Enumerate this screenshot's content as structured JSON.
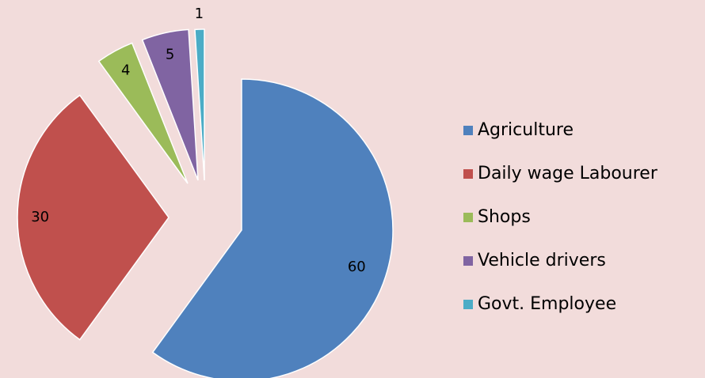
{
  "chart_data": {
    "type": "pie",
    "categories": [
      "Agriculture",
      "Daily wage Labourer",
      "Shops",
      "Vehicle drivers",
      "Govt. Employee"
    ],
    "values": [
      60,
      30,
      4,
      5,
      1
    ],
    "colors": [
      "#4f81bd",
      "#c0504d",
      "#9bbb59",
      "#8064a2",
      "#4bacc6"
    ],
    "legend": "right"
  }
}
